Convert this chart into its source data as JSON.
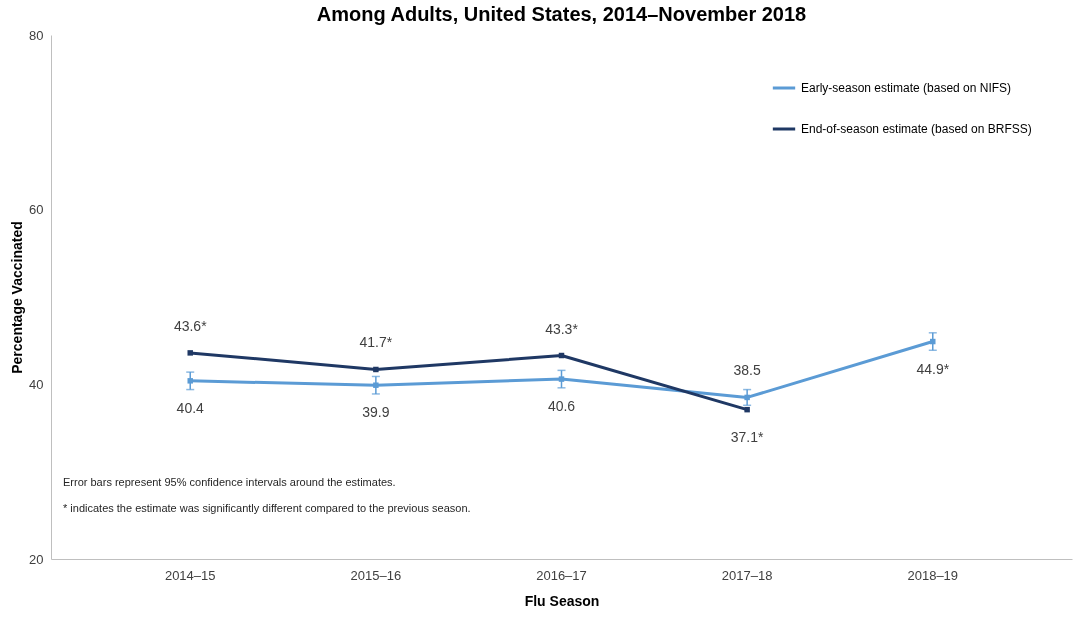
{
  "chart_data": {
    "type": "line",
    "title": "Among Adults, United States, 2014–November 2018",
    "xlabel": "Flu Season",
    "ylabel": "Percentage Vaccinated",
    "categories": [
      "2014–15",
      "2015–16",
      "2016–17",
      "2017–18",
      "2018–19"
    ],
    "series": [
      {
        "name": "Early-season estimate (based on NIFS)",
        "color": "#5b9bd5",
        "values": [
          40.4,
          39.9,
          40.6,
          38.5,
          44.9
        ],
        "errors": [
          1,
          1,
          1,
          0.9,
          1
        ],
        "value_labels": [
          "40.4",
          "39.9",
          "40.6",
          "38.5",
          "44.9*"
        ]
      },
      {
        "name": "End-of-season estimate (based on BRFSS)",
        "color": "#1f3864",
        "values": [
          43.6,
          41.7,
          43.3,
          37.1,
          null
        ],
        "value_labels": [
          "43.6*",
          "41.7*",
          "43.3*",
          "37.1*",
          null
        ]
      }
    ],
    "ylim": [
      20,
      80
    ],
    "yticks": [
      20,
      40,
      60,
      80
    ],
    "grid": false,
    "legend": "top right",
    "marker": "square",
    "line_style": "solid",
    "annotations": [
      "Error bars represent 95% confidence intervals around the estimates.",
      "* indicates the estimate was significantly different compared to the previous season."
    ]
  }
}
